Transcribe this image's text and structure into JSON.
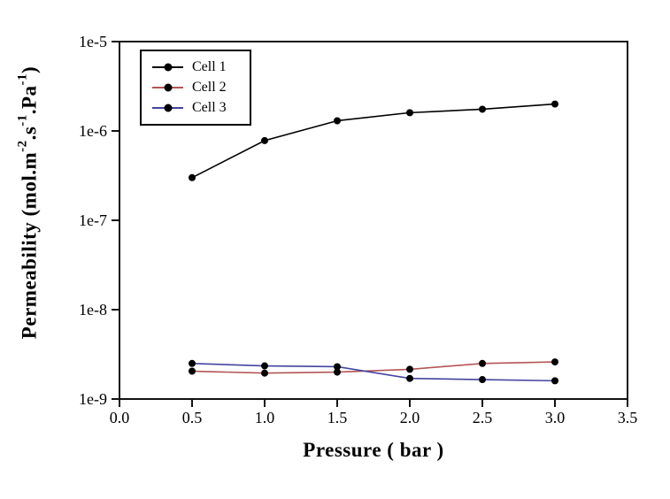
{
  "chart_data": {
    "type": "line",
    "title": "",
    "xlabel": "Pressure ( bar )",
    "ylabel": "Permeability (mol.m⁻².s⁻¹.Pa⁻¹)",
    "ylabel_parts": [
      {
        "t": "Permeability (mol.m"
      },
      {
        "t": "-2",
        "sup": true
      },
      {
        "t": ".s"
      },
      {
        "t": "-1",
        "sup": true
      },
      {
        "t": ".Pa"
      },
      {
        "t": "-1",
        "sup": true
      },
      {
        "t": ")"
      }
    ],
    "xlim": [
      0,
      3.5
    ],
    "ylim": [
      1e-09,
      1e-05
    ],
    "xscale": "linear",
    "yscale": "log",
    "grid": false,
    "legend_position": "upper-left-inside",
    "x_ticks": {
      "values": [
        0,
        0.5,
        1.0,
        1.5,
        2.0,
        2.5,
        3.0,
        3.5
      ],
      "labels": [
        "0.0",
        "0.5",
        "1.0",
        "1.5",
        "2.0",
        "2.5",
        "3.0",
        "3.5"
      ]
    },
    "y_ticks": {
      "values": [
        1e-05,
        1e-06,
        1e-07,
        1e-08,
        1e-09
      ],
      "labels": [
        "1e-5",
        "1e-6",
        "1e-7",
        "1e-8",
        "1e-9"
      ]
    },
    "x": [
      0.5,
      1.0,
      1.5,
      2.0,
      2.5,
      3.0
    ],
    "series": [
      {
        "name": "Cell 1",
        "color": "#000000",
        "marker": "filled-circle",
        "marker_color": "#000000",
        "values": [
          3e-07,
          7.8e-07,
          1.3e-06,
          1.6e-06,
          1.75e-06,
          2e-06
        ]
      },
      {
        "name": "Cell 2",
        "color": "#b45555",
        "marker": "filled-circle",
        "marker_color": "#000000",
        "values": [
          2.05e-09,
          1.95e-09,
          2e-09,
          2.15e-09,
          2.5e-09,
          2.6e-09
        ]
      },
      {
        "name": "Cell 3",
        "color": "#4444a0",
        "marker": "filled-circle",
        "marker_color": "#000000",
        "values": [
          2.5e-09,
          2.35e-09,
          2.3e-09,
          1.7e-09,
          1.65e-09,
          1.6e-09
        ]
      }
    ]
  }
}
